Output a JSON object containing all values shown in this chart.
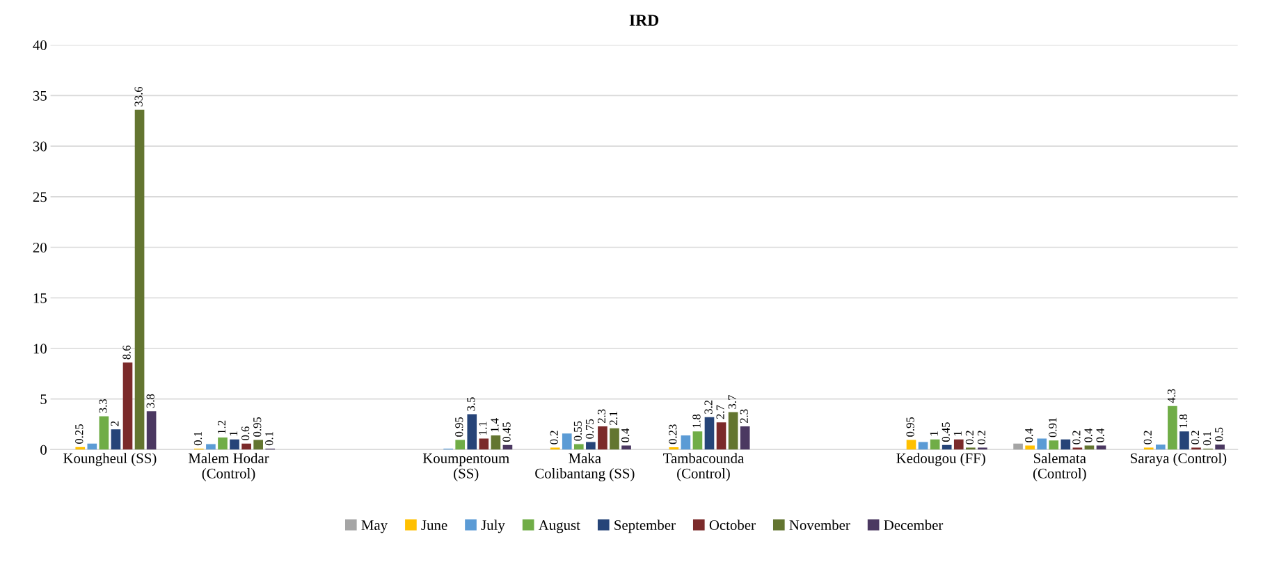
{
  "chart_data": {
    "type": "bar",
    "title": "IRD",
    "categories": [
      "Koungheul (SS)",
      "Malem Hodar\n(Control)",
      null,
      "Koumpentoum\n(SS)",
      "Maka\nColibantang (SS)",
      "Tambacounda\n(Control)",
      null,
      "Kedougou (FF)",
      "Salemata\n(Control)",
      "Saraya (Control)"
    ],
    "series": [
      {
        "name": "May",
        "color": "#a5a5a5",
        "values": [
          null,
          null,
          null,
          null,
          null,
          null,
          null,
          null,
          0.6,
          null
        ],
        "value_labels": [
          null,
          null,
          null,
          null,
          null,
          null,
          null,
          null,
          null,
          null
        ]
      },
      {
        "name": "June",
        "color": "#ffc000",
        "values": [
          0.25,
          0.1,
          null,
          null,
          0.2,
          0.23,
          null,
          0.95,
          0.4,
          0.2
        ],
        "value_labels": [
          "0.25",
          "0.1",
          null,
          null,
          "0.2",
          "0.23",
          null,
          "0.95",
          "0.4",
          "0.2"
        ]
      },
      {
        "name": "July",
        "color": "#5b9bd5",
        "values": [
          0.6,
          0.55,
          null,
          0.1,
          1.6,
          1.4,
          null,
          0.75,
          1.1,
          0.5
        ],
        "value_labels": [
          null,
          null,
          null,
          null,
          null,
          null,
          null,
          null,
          null,
          null
        ]
      },
      {
        "name": "August",
        "color": "#70ad47",
        "values": [
          3.3,
          1.2,
          null,
          0.95,
          0.55,
          1.8,
          null,
          1,
          0.91,
          4.3
        ],
        "value_labels": [
          "3.3",
          "1.2",
          null,
          "0.95",
          "0.55",
          "1.8",
          null,
          "1",
          "0.91",
          "4.3"
        ]
      },
      {
        "name": "September",
        "color": "#264478",
        "values": [
          2,
          1,
          null,
          3.5,
          0.75,
          3.2,
          null,
          0.45,
          1.0,
          1.8
        ],
        "value_labels": [
          "2",
          "1",
          null,
          "3.5",
          "0.75",
          "3.2",
          null,
          "0.45",
          null,
          "1.8"
        ]
      },
      {
        "name": "October",
        "color": "#7b2a2a",
        "values": [
          8.6,
          0.6,
          null,
          1.1,
          2.3,
          2.7,
          null,
          1,
          0.2,
          0.2
        ],
        "value_labels": [
          "8.6",
          "0.6",
          null,
          "1.1",
          "2.3",
          "2.7",
          null,
          "1",
          "0.2",
          "0.2"
        ]
      },
      {
        "name": "November",
        "color": "#637530",
        "values": [
          33.6,
          0.95,
          null,
          1.4,
          2.1,
          3.7,
          null,
          0.2,
          0.4,
          0.1
        ],
        "value_labels": [
          "33.6",
          "0.95",
          null,
          "1.4",
          "2.1",
          "3.7",
          null,
          "0.2",
          "0.4",
          "0.1"
        ]
      },
      {
        "name": "December",
        "color": "#4b3861",
        "values": [
          3.8,
          0.1,
          null,
          0.45,
          0.4,
          2.3,
          null,
          0.2,
          0.4,
          0.5
        ],
        "value_labels": [
          "3.8",
          "0.1",
          null,
          "0.45",
          "0.4",
          "2.3",
          null,
          "0.2",
          "0.4",
          "0.5"
        ]
      }
    ],
    "ylim": [
      0,
      40
    ],
    "yticks": [
      0,
      5,
      10,
      15,
      20,
      25,
      30,
      35,
      40
    ],
    "grid": "y",
    "legend": "bottom"
  }
}
